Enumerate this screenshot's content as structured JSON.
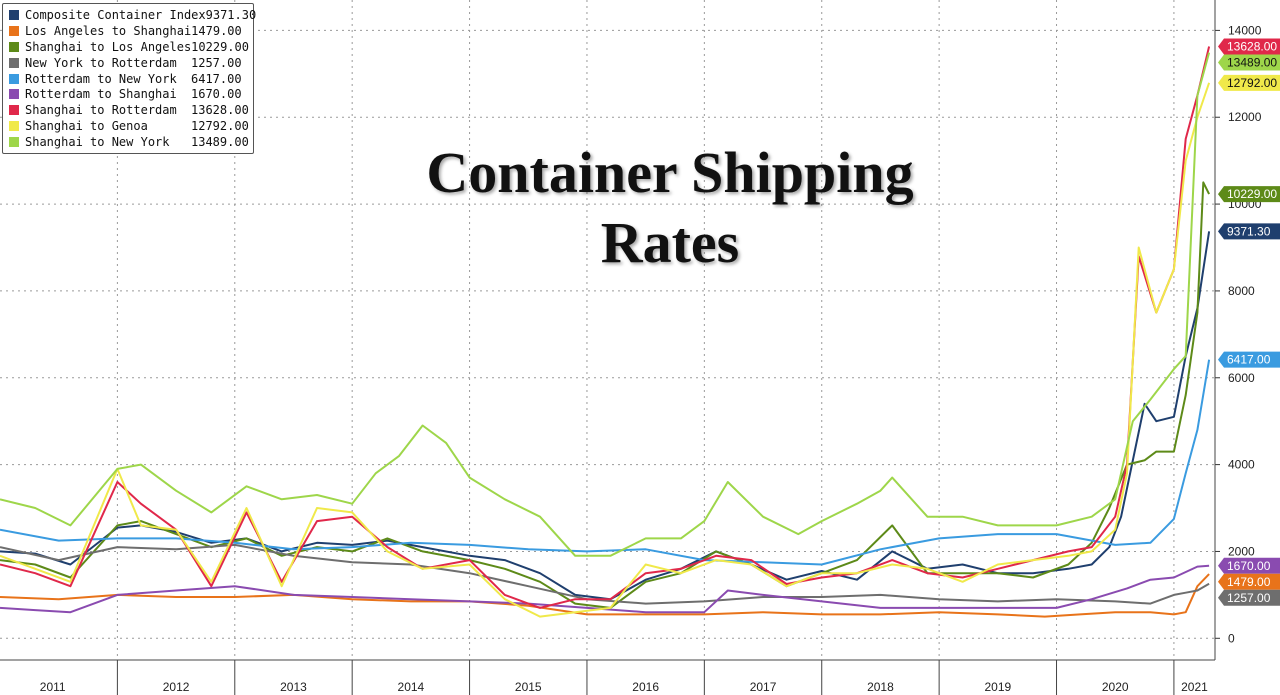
{
  "title_lines": [
    "Container Shipping",
    "Rates"
  ],
  "chart_data": {
    "type": "line",
    "title": "Container Shipping Rates",
    "x_ticks": [
      "2011",
      "2012",
      "2013",
      "2014",
      "2015",
      "2016",
      "2017",
      "2018",
      "2019",
      "2020",
      "2021"
    ],
    "xlim": [
      2011.0,
      2021.35
    ],
    "y_ticks": [
      "0",
      "2000",
      "4000",
      "6000",
      "8000",
      "10000",
      "12000",
      "14000"
    ],
    "ylim": [
      -500,
      14700
    ],
    "grid": true,
    "legend_position": "top-left",
    "series": [
      {
        "name": "Composite Container Index",
        "last_label": "9371.30",
        "color": "#1f3f6e",
        "x": [
          2011.0,
          2011.3,
          2011.6,
          2012.0,
          2012.2,
          2012.5,
          2012.8,
          2013.1,
          2013.4,
          2013.7,
          2014.0,
          2014.3,
          2014.6,
          2015.0,
          2015.3,
          2015.6,
          2015.9,
          2016.2,
          2016.5,
          2016.8,
          2017.1,
          2017.4,
          2017.7,
          2018.0,
          2018.3,
          2018.6,
          2018.9,
          2019.2,
          2019.5,
          2019.8,
          2020.1,
          2020.3,
          2020.45,
          2020.55,
          2020.75,
          2020.85,
          2021.0,
          2021.1,
          2021.2,
          2021.3
        ],
        "y": [
          2000,
          1950,
          1700,
          2550,
          2600,
          2450,
          2200,
          2300,
          2000,
          2200,
          2150,
          2250,
          2100,
          1900,
          1800,
          1500,
          1000,
          900,
          1350,
          1600,
          2000,
          1700,
          1350,
          1550,
          1350,
          2000,
          1600,
          1700,
          1500,
          1500,
          1600,
          1700,
          2100,
          2800,
          5400,
          5000,
          5100,
          6500,
          7600,
          9371
        ]
      },
      {
        "name": "Los Angeles to Shanghai",
        "last_label": "1479.00",
        "color": "#e8731a",
        "x": [
          2011.0,
          2011.5,
          2012.0,
          2012.5,
          2013.0,
          2013.5,
          2014.0,
          2014.5,
          2015.0,
          2015.5,
          2016.0,
          2016.5,
          2017.0,
          2017.5,
          2018.0,
          2018.5,
          2019.0,
          2019.5,
          2019.9,
          2020.2,
          2020.5,
          2020.8,
          2021.0,
          2021.1,
          2021.2,
          2021.3
        ],
        "y": [
          950,
          900,
          1000,
          950,
          950,
          1000,
          900,
          850,
          850,
          750,
          550,
          550,
          550,
          600,
          550,
          550,
          600,
          550,
          500,
          550,
          600,
          600,
          550,
          600,
          1200,
          1479
        ]
      },
      {
        "name": "Shanghai to Los Angeles",
        "last_label": "10229.00",
        "color": "#5d8a18",
        "x": [
          2011.0,
          2011.3,
          2011.6,
          2012.0,
          2012.2,
          2012.5,
          2012.8,
          2013.1,
          2013.4,
          2013.7,
          2014.0,
          2014.3,
          2014.6,
          2015.0,
          2015.3,
          2015.6,
          2015.9,
          2016.2,
          2016.5,
          2016.8,
          2017.1,
          2017.4,
          2017.7,
          2018.0,
          2018.3,
          2018.6,
          2018.9,
          2019.2,
          2019.5,
          2019.8,
          2020.1,
          2020.3,
          2020.45,
          2020.6,
          2020.75,
          2020.85,
          2021.0,
          2021.1,
          2021.2,
          2021.25,
          2021.3
        ],
        "y": [
          1800,
          1700,
          1400,
          2600,
          2700,
          2400,
          2100,
          2300,
          1900,
          2100,
          2000,
          2300,
          2000,
          1800,
          1600,
          1300,
          800,
          700,
          1300,
          1500,
          2000,
          1700,
          1200,
          1500,
          1800,
          2600,
          1500,
          1500,
          1500,
          1400,
          1700,
          2200,
          3000,
          4000,
          4100,
          4300,
          4300,
          5600,
          7500,
          10500,
          10229
        ]
      },
      {
        "name": "New York to Rotterdam",
        "last_label": "1257.00",
        "color": "#6e6e6e",
        "x": [
          2011.0,
          2011.5,
          2012.0,
          2012.5,
          2013.0,
          2013.5,
          2014.0,
          2014.5,
          2015.0,
          2015.5,
          2016.0,
          2016.5,
          2017.0,
          2017.5,
          2018.0,
          2018.5,
          2019.0,
          2019.5,
          2020.0,
          2020.5,
          2020.8,
          2021.0,
          2021.1,
          2021.2,
          2021.3
        ],
        "y": [
          2100,
          1800,
          2100,
          2050,
          2150,
          1900,
          1750,
          1700,
          1500,
          1200,
          900,
          800,
          850,
          950,
          950,
          1000,
          900,
          850,
          900,
          850,
          800,
          1000,
          1050,
          1100,
          1257
        ]
      },
      {
        "name": "Rotterdam to New York",
        "last_label": "6417.00",
        "color": "#3a9be0",
        "x": [
          2011.0,
          2011.5,
          2012.0,
          2012.5,
          2013.0,
          2013.5,
          2014.0,
          2014.5,
          2015.0,
          2015.5,
          2016.0,
          2016.5,
          2017.0,
          2017.5,
          2018.0,
          2018.5,
          2019.0,
          2019.5,
          2020.0,
          2020.5,
          2020.8,
          2021.0,
          2021.1,
          2021.2,
          2021.3
        ],
        "y": [
          2500,
          2250,
          2300,
          2300,
          2200,
          2050,
          2100,
          2200,
          2150,
          2050,
          2000,
          2050,
          1800,
          1750,
          1700,
          2050,
          2300,
          2400,
          2400,
          2150,
          2200,
          2750,
          3800,
          4800,
          6417
        ]
      },
      {
        "name": "Rotterdam to Shanghai",
        "last_label": "1670.00",
        "color": "#8a4bb0",
        "x": [
          2011.0,
          2011.3,
          2011.6,
          2012.0,
          2012.5,
          2013.0,
          2013.5,
          2014.0,
          2014.5,
          2015.0,
          2015.5,
          2016.0,
          2016.5,
          2017.0,
          2017.2,
          2017.5,
          2018.0,
          2018.5,
          2019.0,
          2019.5,
          2020.0,
          2020.3,
          2020.6,
          2020.8,
          2021.0,
          2021.2,
          2021.3
        ],
        "y": [
          700,
          650,
          600,
          1000,
          1100,
          1200,
          1000,
          950,
          900,
          850,
          800,
          700,
          600,
          600,
          1100,
          1000,
          850,
          700,
          700,
          700,
          700,
          900,
          1150,
          1350,
          1400,
          1650,
          1670
        ]
      },
      {
        "name": "Shanghai to Rotterdam",
        "last_label": "13628.00",
        "color": "#e0284a",
        "x": [
          2011.0,
          2011.3,
          2011.6,
          2012.0,
          2012.2,
          2012.5,
          2012.8,
          2013.1,
          2013.4,
          2013.7,
          2014.0,
          2014.3,
          2014.6,
          2015.0,
          2015.3,
          2015.6,
          2015.9,
          2016.2,
          2016.5,
          2016.8,
          2017.1,
          2017.4,
          2017.7,
          2018.0,
          2018.3,
          2018.6,
          2018.9,
          2019.2,
          2019.5,
          2019.8,
          2020.1,
          2020.3,
          2020.5,
          2020.6,
          2020.7,
          2020.85,
          2021.0,
          2021.1,
          2021.2,
          2021.3
        ],
        "y": [
          1700,
          1500,
          1200,
          3600,
          3100,
          2500,
          1200,
          2900,
          1300,
          2700,
          2800,
          2100,
          1600,
          1800,
          1000,
          700,
          900,
          900,
          1500,
          1600,
          1900,
          1800,
          1250,
          1400,
          1500,
          1800,
          1500,
          1400,
          1600,
          1800,
          2000,
          2100,
          2800,
          4000,
          8800,
          7500,
          8500,
          11500,
          12500,
          13628
        ]
      },
      {
        "name": "Shanghai to Genoa",
        "last_label": "12792.00",
        "color": "#f0e94a",
        "x": [
          2011.0,
          2011.3,
          2011.6,
          2012.0,
          2012.2,
          2012.5,
          2012.8,
          2013.1,
          2013.4,
          2013.7,
          2014.0,
          2014.3,
          2014.6,
          2015.0,
          2015.3,
          2015.6,
          2015.9,
          2016.2,
          2016.5,
          2016.8,
          2017.1,
          2017.4,
          2017.7,
          2018.0,
          2018.3,
          2018.6,
          2018.9,
          2019.2,
          2019.5,
          2019.8,
          2020.1,
          2020.3,
          2020.5,
          2020.6,
          2020.7,
          2020.85,
          2021.0,
          2021.1,
          2021.2,
          2021.3
        ],
        "y": [
          1900,
          1600,
          1300,
          3900,
          2600,
          2500,
          1300,
          3000,
          1200,
          3000,
          2900,
          2000,
          1600,
          1700,
          900,
          500,
          600,
          700,
          1700,
          1500,
          1800,
          1700,
          1200,
          1500,
          1500,
          1700,
          1600,
          1300,
          1700,
          1800,
          1900,
          2000,
          2500,
          3800,
          9000,
          7500,
          8500,
          11000,
          12000,
          12792
        ]
      },
      {
        "name": "Shanghai to New York",
        "last_label": "13489.00",
        "color": "#9ed64a",
        "x": [
          2011.0,
          2011.3,
          2011.6,
          2012.0,
          2012.2,
          2012.5,
          2012.8,
          2013.1,
          2013.4,
          2013.7,
          2014.0,
          2014.2,
          2014.4,
          2014.6,
          2014.8,
          2015.0,
          2015.3,
          2015.6,
          2015.9,
          2016.2,
          2016.5,
          2016.8,
          2017.0,
          2017.2,
          2017.5,
          2017.8,
          2018.0,
          2018.3,
          2018.5,
          2018.6,
          2018.9,
          2019.2,
          2019.5,
          2019.8,
          2020.0,
          2020.3,
          2020.5,
          2020.65,
          2020.8,
          2021.0,
          2021.1,
          2021.2,
          2021.3
        ],
        "y": [
          3200,
          3000,
          2600,
          3900,
          4000,
          3400,
          2900,
          3500,
          3200,
          3300,
          3100,
          3800,
          4200,
          4900,
          4500,
          3700,
          3200,
          2800,
          1900,
          1900,
          2300,
          2300,
          2700,
          3600,
          2800,
          2400,
          2700,
          3100,
          3400,
          3700,
          2800,
          2800,
          2600,
          2600,
          2600,
          2800,
          3200,
          5000,
          5500,
          6200,
          6500,
          12500,
          13489
        ]
      }
    ]
  }
}
